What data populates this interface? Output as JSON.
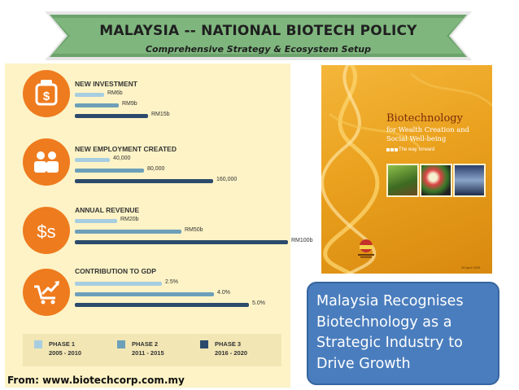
{
  "banner": {
    "title": "MALAYSIA -- NATIONAL BIOTECH POLICY",
    "subtitle": "Comprehensive Strategy & Ecosystem Setup"
  },
  "infographic": {
    "colors": {
      "phase1": "#a7cde0",
      "phase2": "#6d9fb9",
      "phase3": "#2c4a6b",
      "icon": "#ee7b1e",
      "background": "#fdf3c6"
    },
    "sections": [
      {
        "title": "NEW INVESTMENT",
        "icon": "money-bag-icon",
        "values": [
          6,
          9,
          15
        ],
        "labels": [
          "RM6b",
          "RM9b",
          "RM15b"
        ]
      },
      {
        "title": "NEW EMPLOYMENT CREATED",
        "icon": "people-icon",
        "values": [
          40000,
          80000,
          160000
        ],
        "labels": [
          "40,000",
          "80,000",
          "160,000"
        ]
      },
      {
        "title": "ANNUAL REVENUE",
        "icon": "currency-icon",
        "values": [
          20,
          50,
          100
        ],
        "labels": [
          "RM20b",
          "RM50b",
          "RM100b"
        ]
      },
      {
        "title": "CONTRIBUTION TO GDP",
        "icon": "cart-growth-icon",
        "values": [
          2.5,
          4.0,
          5.0
        ],
        "labels": [
          "2.5%",
          "4.0%",
          "5.0%"
        ]
      }
    ],
    "legend": [
      {
        "name": "PHASE 1",
        "years": "2005 - 2010"
      },
      {
        "name": "PHASE 2",
        "years": "2011 - 2015"
      },
      {
        "name": "PHASE 3",
        "years": "2016 - 2020"
      }
    ]
  },
  "source": "From: www.biotechcorp.com.my",
  "book": {
    "title": "Biotechnology",
    "subtitle": "for Wealth Creation and Social Well-being",
    "tagline": "The way forward",
    "date": "28 April 2005"
  },
  "callout": {
    "text": "Malaysia Recognises Biotechnology as a Strategic Industry to Drive Growth"
  }
}
